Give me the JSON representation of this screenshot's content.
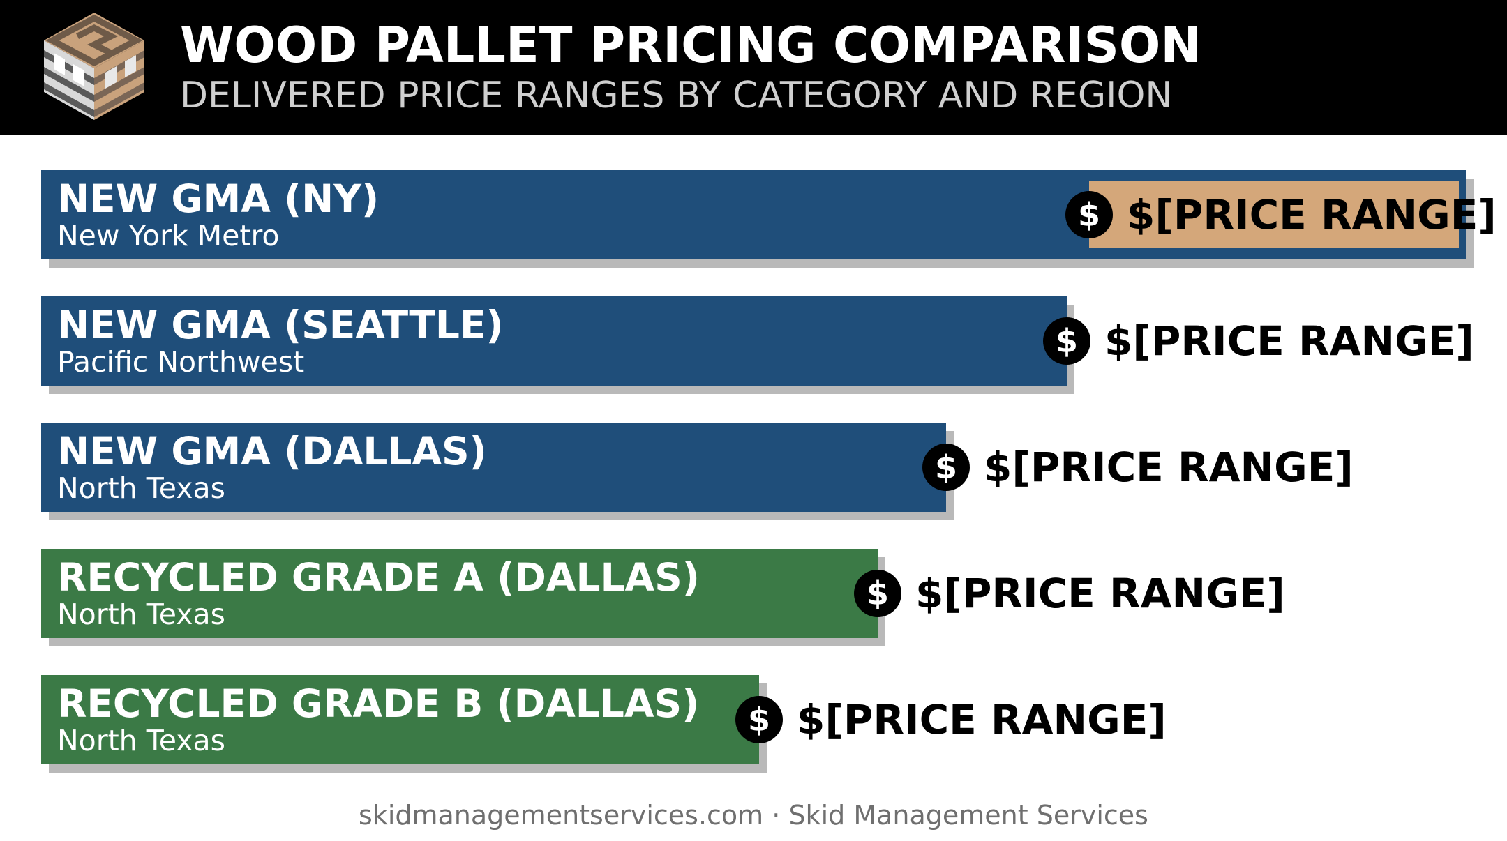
{
  "header": {
    "title": "WOOD PALLET PRICING COMPARISON",
    "subtitle": "DELIVERED PRICE RANGES BY CATEGORY AND REGION",
    "logo_icon": "pallet-logo-icon"
  },
  "chart_data": {
    "type": "bar",
    "orientation": "horizontal",
    "title": "WOOD PALLET PRICING COMPARISON",
    "subtitle": "DELIVERED PRICE RANGES BY CATEGORY AND REGION",
    "categories": [
      "NEW GMA (NY)",
      "NEW GMA (SEATTLE)",
      "NEW GMA (DALLAS)",
      "RECYCLED GRADE A (DALLAS)",
      "RECYCLED GRADE B (DALLAS)"
    ],
    "bars": [
      {
        "label": "NEW GMA (NY)",
        "sublabel": "New York Metro",
        "value": 100,
        "group": "new",
        "price_label": "$[PRICE RANGE]",
        "highlight": true
      },
      {
        "label": "NEW GMA (SEATTLE)",
        "sublabel": "Pacific Northwest",
        "value": 72,
        "group": "new",
        "price_label": "$[PRICE RANGE]",
        "highlight": false
      },
      {
        "label": "NEW GMA (DALLAS)",
        "sublabel": "North Texas",
        "value": 63.5,
        "group": "new",
        "price_label": "$[PRICE RANGE]",
        "highlight": false
      },
      {
        "label": "RECYCLED GRADE A (DALLAS)",
        "sublabel": "North Texas",
        "value": 58.7,
        "group": "recycled",
        "price_label": "$[PRICE RANGE]",
        "highlight": false
      },
      {
        "label": "RECYCLED GRADE B (DALLAS)",
        "sublabel": "North Texas",
        "value": 50.4,
        "group": "recycled",
        "price_label": "$[PRICE RANGE]",
        "highlight": false
      }
    ],
    "max_value": 100,
    "colors": {
      "new": "#1f4e7a",
      "recycled": "#3b7a46",
      "highlight": "#d4a77a",
      "shadow": "#b9b9b9"
    },
    "dollar_icon": "dollar-circle-icon",
    "legend": "none",
    "grid": false
  },
  "footer": {
    "text": "skidmanagementservices.com · Skid Management Services"
  }
}
